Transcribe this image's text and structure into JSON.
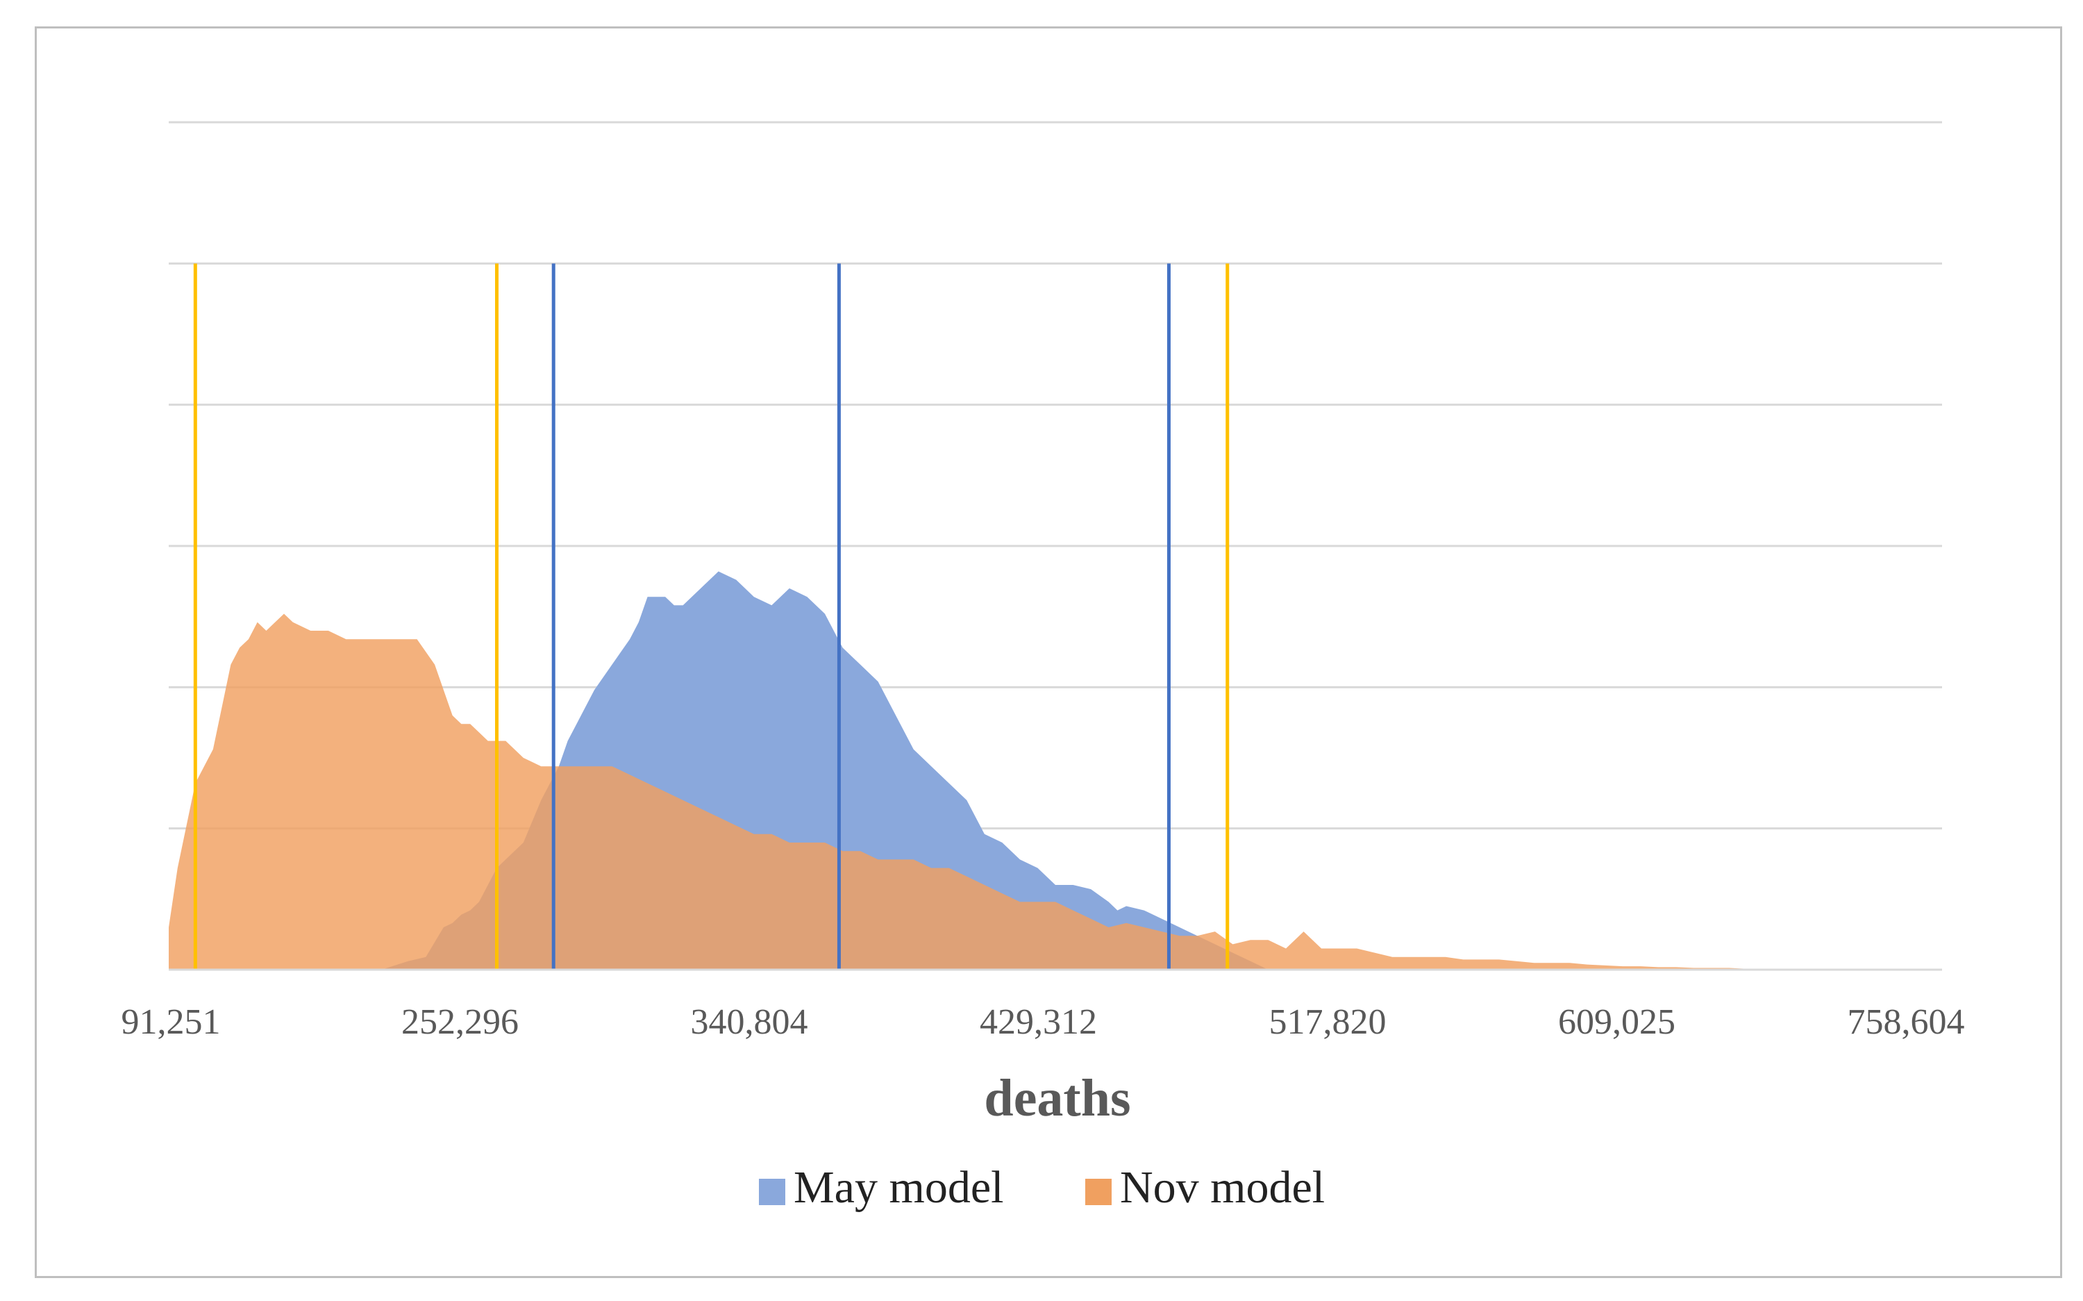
{
  "chart_data": {
    "type": "area",
    "title": "",
    "xlabel": "deaths",
    "ylabel": "",
    "x_ticks": [
      "91,251",
      "252,296",
      "340,804",
      "429,312",
      "517,820",
      "609,025",
      "758,604"
    ],
    "x_range": [
      0,
      100
    ],
    "y_range": [
      0,
      1
    ],
    "gridlines": true,
    "y_gridlines": [
      0.1667,
      0.3333,
      0.5,
      0.6667,
      0.8333,
      1.0
    ],
    "legend_position": "bottom",
    "series": [
      {
        "name": "May model",
        "color": "#8aa8dc",
        "x": [
          0,
          12,
          13.5,
          14.5,
          15.5,
          16,
          16.5,
          17,
          17.5,
          18,
          18.5,
          19,
          20,
          21,
          22,
          22.5,
          23,
          24,
          25,
          26,
          26.5,
          27,
          28,
          28.5,
          29,
          30,
          31,
          32,
          33,
          34,
          35,
          36,
          37,
          38,
          38.5,
          39,
          40,
          41,
          42,
          43,
          44,
          45,
          46,
          47,
          48,
          49,
          50,
          51,
          52,
          53,
          53.5,
          54,
          55,
          56,
          57,
          58,
          59,
          60,
          61,
          62,
          100
        ],
        "values": [
          0,
          0,
          0.01,
          0.015,
          0.05,
          0.055,
          0.065,
          0.07,
          0.08,
          0.1,
          0.12,
          0.13,
          0.15,
          0.2,
          0.24,
          0.27,
          0.29,
          0.33,
          0.36,
          0.39,
          0.41,
          0.44,
          0.44,
          0.43,
          0.43,
          0.45,
          0.47,
          0.46,
          0.44,
          0.43,
          0.45,
          0.44,
          0.42,
          0.38,
          0.37,
          0.36,
          0.34,
          0.3,
          0.26,
          0.24,
          0.22,
          0.2,
          0.16,
          0.15,
          0.13,
          0.12,
          0.1,
          0.1,
          0.095,
          0.08,
          0.07,
          0.075,
          0.07,
          0.06,
          0.05,
          0.04,
          0.03,
          0.02,
          0.01,
          0,
          0
        ]
      },
      {
        "name": "Nov model",
        "color": "#f0a060",
        "x": [
          0,
          0.5,
          1.5,
          2.5,
          3.5,
          4,
          4.5,
          5,
          5.5,
          6,
          6.5,
          7,
          8,
          9,
          10,
          11,
          12,
          13,
          14,
          15,
          16,
          16.5,
          17,
          17.5,
          18,
          19,
          20,
          21,
          22,
          23,
          24,
          25,
          26,
          27,
          28,
          29,
          30,
          31,
          32,
          33,
          34,
          35,
          36,
          37,
          38,
          39,
          40,
          41,
          42,
          43,
          44,
          45,
          46,
          47,
          48,
          49,
          50,
          51,
          52,
          53,
          54,
          55,
          56,
          57,
          58,
          59,
          60,
          61,
          62,
          63,
          64,
          65,
          66,
          67,
          68,
          69,
          70,
          71,
          72,
          73,
          74,
          75,
          76,
          77,
          78,
          79,
          80,
          81,
          82,
          83,
          84,
          85,
          86,
          87,
          88,
          89,
          90,
          91,
          92,
          93,
          94,
          95,
          96,
          97,
          98,
          99,
          100
        ],
        "values": [
          0.05,
          0.12,
          0.22,
          0.26,
          0.36,
          0.38,
          0.39,
          0.41,
          0.4,
          0.41,
          0.42,
          0.41,
          0.4,
          0.4,
          0.39,
          0.39,
          0.39,
          0.39,
          0.39,
          0.36,
          0.3,
          0.29,
          0.29,
          0.28,
          0.27,
          0.27,
          0.25,
          0.24,
          0.24,
          0.24,
          0.24,
          0.24,
          0.23,
          0.22,
          0.21,
          0.2,
          0.19,
          0.18,
          0.17,
          0.16,
          0.16,
          0.15,
          0.15,
          0.15,
          0.14,
          0.14,
          0.13,
          0.13,
          0.13,
          0.12,
          0.12,
          0.11,
          0.1,
          0.09,
          0.08,
          0.08,
          0.08,
          0.07,
          0.06,
          0.05,
          0.055,
          0.05,
          0.045,
          0.04,
          0.04,
          0.045,
          0.03,
          0.035,
          0.035,
          0.025,
          0.045,
          0.025,
          0.025,
          0.025,
          0.02,
          0.015,
          0.015,
          0.015,
          0.015,
          0.012,
          0.012,
          0.012,
          0.01,
          0.008,
          0.008,
          0.008,
          0.006,
          0.005,
          0.004,
          0.004,
          0.003,
          0.003,
          0.002,
          0.002,
          0.002,
          0.001,
          0.001,
          0.001,
          0.001,
          0.001,
          0.001,
          0.001,
          0,
          0,
          0,
          0,
          0
        ]
      }
    ],
    "vertical_lines": [
      {
        "series": "Nov model",
        "color": "#ffc000",
        "x": 1.5
      },
      {
        "series": "Nov model",
        "color": "#ffc000",
        "x": 18.5
      },
      {
        "series": "May model",
        "color": "#4472c4",
        "x": 21.7
      },
      {
        "series": "May model",
        "color": "#4472c4",
        "x": 37.8
      },
      {
        "series": "May model",
        "color": "#4472c4",
        "x": 56.4
      },
      {
        "series": "Nov model",
        "color": "#ffc000",
        "x": 59.7
      }
    ]
  }
}
